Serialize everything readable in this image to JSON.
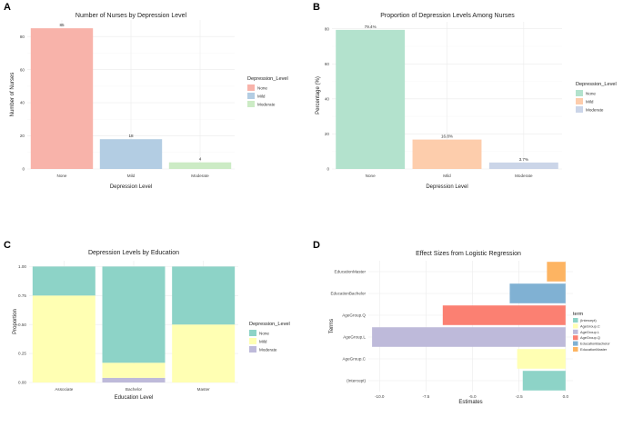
{
  "panels": {
    "a": "A",
    "b": "B",
    "c": "C",
    "d": "D"
  },
  "chart_data": [
    {
      "id": "A",
      "type": "bar",
      "title": "Number of Nurses by Depression Level",
      "xlabel": "Depression Level",
      "ylabel": "Number of Nurses",
      "categories": [
        "None",
        "Mild",
        "Moderate"
      ],
      "values": [
        85,
        18,
        4
      ],
      "data_labels": [
        "85",
        "18",
        "4"
      ],
      "ylim": [
        0,
        90
      ],
      "yticks": [
        0,
        20,
        40,
        60,
        80
      ],
      "colors": [
        "#f8b3aa",
        "#b3cde3",
        "#ccebc5"
      ],
      "legend": {
        "title": "Depression_Level",
        "entries": [
          "None",
          "Mild",
          "Moderate"
        ],
        "position": "right"
      }
    },
    {
      "id": "B",
      "type": "bar",
      "title": "Proportion of Depression Levels Among Nurses",
      "xlabel": "Depression Level",
      "ylabel": "Percentage (%)",
      "categories": [
        "None",
        "Mild",
        "Moderate"
      ],
      "values": [
        79.4,
        16.8,
        3.7
      ],
      "data_labels": [
        "79.4%",
        "16.8%",
        "3.7%"
      ],
      "ylim": [
        0,
        84
      ],
      "yticks": [
        0,
        20,
        40,
        60,
        80
      ],
      "colors": [
        "#b3e2cd",
        "#fdcdac",
        "#cbd5e8"
      ],
      "legend": {
        "title": "Depression_Level",
        "entries": [
          "None",
          "Mild",
          "Moderate"
        ],
        "position": "right"
      }
    },
    {
      "id": "C",
      "type": "bar",
      "stacked": true,
      "title": "Depression Levels by Education",
      "xlabel": "Education Level",
      "ylabel": "Proportion",
      "categories": [
        "Associate",
        "Bachelor",
        "Master"
      ],
      "series": [
        {
          "name": "Moderate",
          "color": "#bebada",
          "values": [
            0.0,
            0.04,
            0.0
          ]
        },
        {
          "name": "Mild",
          "color": "#ffffb3",
          "values": [
            0.75,
            0.13,
            0.5
          ]
        },
        {
          "name": "None",
          "color": "#8dd3c7",
          "values": [
            0.25,
            0.83,
            0.5
          ]
        }
      ],
      "ylim": [
        0,
        1.05
      ],
      "yticks": [
        "0.00",
        "0.25",
        "0.50",
        "0.75",
        "1.00"
      ],
      "legend": {
        "title": "Depression_Level",
        "entries": [
          "None",
          "Mild",
          "Moderate"
        ],
        "colors": [
          "#8dd3c7",
          "#ffffb3",
          "#bebada"
        ],
        "position": "right"
      }
    },
    {
      "id": "D",
      "type": "bar",
      "orientation": "horizontal",
      "title": "Effect Sizes from Logistic Regression",
      "xlabel": "Estimates",
      "ylabel": "Terms",
      "categories": [
        "(Intercept)",
        "AgeGroup.C",
        "AgeGroup.L",
        "AgeGroup.Q",
        "EducationBachelor",
        "EducationMaster"
      ],
      "values": [
        -2.3,
        -2.6,
        -10.4,
        -6.6,
        -3.0,
        -1.0
      ],
      "colors": [
        "#8dd3c7",
        "#ffffb3",
        "#bebada",
        "#fb8072",
        "#80b1d3",
        "#fdb462"
      ],
      "xlim": [
        -10.6,
        0.4
      ],
      "xticks": [
        "-10.0",
        "-7.5",
        "-5.0",
        "-2.5",
        "0.0"
      ],
      "legend": {
        "title": "term",
        "entries": [
          "(Intercept)",
          "AgeGroup.C",
          "AgeGroup.L",
          "AgeGroup.Q",
          "EducationBachelor",
          "EducationMaster"
        ],
        "position": "right"
      }
    }
  ]
}
